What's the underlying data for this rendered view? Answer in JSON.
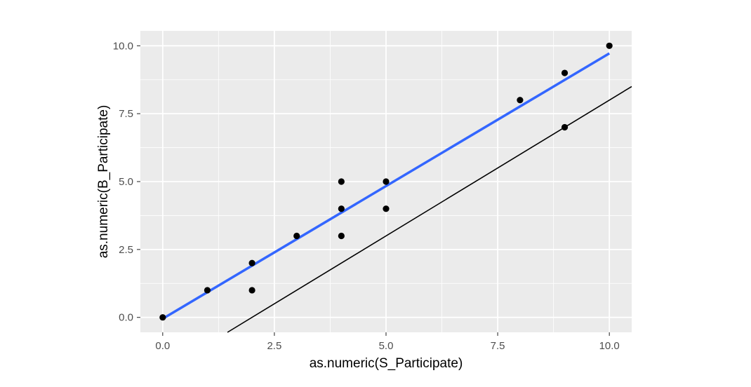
{
  "chart_data": {
    "type": "scatter",
    "xlabel": "as.numeric(S_Participate)",
    "ylabel": "as.numeric(B_Participate)",
    "xlim": [
      -0.5,
      10.5
    ],
    "ylim": [
      -0.55,
      10.55
    ],
    "x_ticks": [
      0.0,
      2.5,
      5.0,
      7.5,
      10.0
    ],
    "y_ticks": [
      0.0,
      2.5,
      5.0,
      7.5,
      10.0
    ],
    "x_tick_labels": [
      "0.0",
      "2.5",
      "5.0",
      "7.5",
      "10.0"
    ],
    "y_tick_labels": [
      "0.0",
      "2.5",
      "5.0",
      "7.5",
      "10.0"
    ],
    "grid": true,
    "background": "#ebebeb",
    "points": [
      {
        "x": 0,
        "y": 0
      },
      {
        "x": 1,
        "y": 1
      },
      {
        "x": 2,
        "y": 2
      },
      {
        "x": 2,
        "y": 1
      },
      {
        "x": 3,
        "y": 3
      },
      {
        "x": 4,
        "y": 5
      },
      {
        "x": 4,
        "y": 4
      },
      {
        "x": 4,
        "y": 3
      },
      {
        "x": 5,
        "y": 5
      },
      {
        "x": 5,
        "y": 4
      },
      {
        "x": 8,
        "y": 8
      },
      {
        "x": 9,
        "y": 9
      },
      {
        "x": 9,
        "y": 7
      },
      {
        "x": 10,
        "y": 10
      }
    ],
    "point_color": "#000000",
    "fit_line": {
      "x0": 0,
      "y0": -0.05,
      "x1": 10,
      "y1": 9.72,
      "color": "#3366ff"
    },
    "reference_line": {
      "intercept": -2.0,
      "slope": 1.0,
      "color": "#000000"
    }
  }
}
